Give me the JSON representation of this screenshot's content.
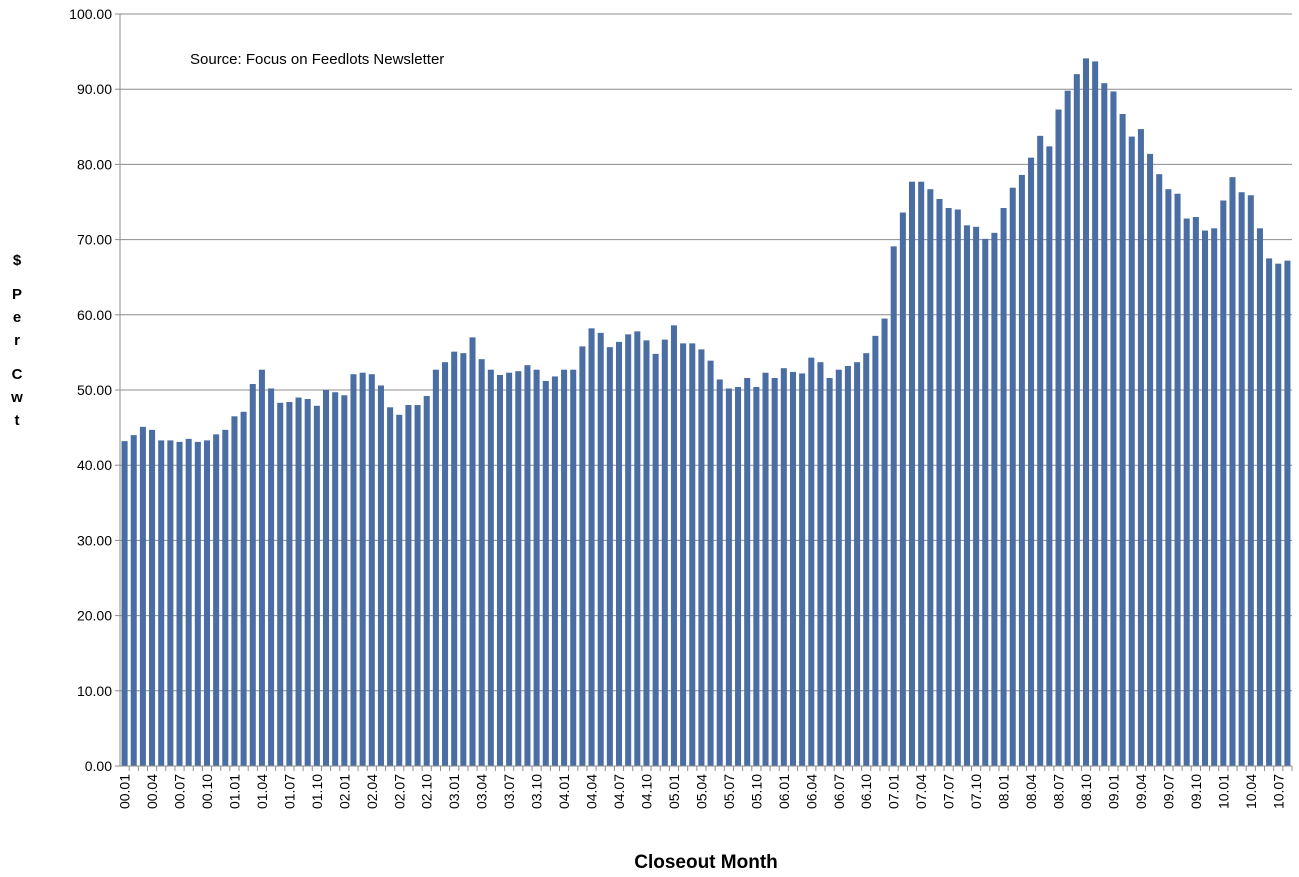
{
  "chart_data": {
    "type": "bar",
    "x_label": "Closeout Month",
    "y_label": "$ Per Cwt",
    "annotation": "Source:  Focus on Feedlots Newsletter",
    "color": "#4a6ea3",
    "grid": true,
    "ylim": [
      0,
      100
    ],
    "yticks": [
      {
        "value": 0,
        "label": "0.00"
      },
      {
        "value": 10,
        "label": "10.00"
      },
      {
        "value": 20,
        "label": "20.00"
      },
      {
        "value": 30,
        "label": "30.00"
      },
      {
        "value": 40,
        "label": "40.00"
      },
      {
        "value": 50,
        "label": "50.00"
      },
      {
        "value": 60,
        "label": "60.00"
      },
      {
        "value": 70,
        "label": "70.00"
      },
      {
        "value": 80,
        "label": "80.00"
      },
      {
        "value": 90,
        "label": "90.00"
      },
      {
        "value": 100,
        "label": "100.00"
      }
    ],
    "categories": [
      "00.01",
      null,
      null,
      "00.04",
      null,
      null,
      "00.07",
      null,
      null,
      "00.10",
      null,
      null,
      "01.01",
      null,
      null,
      "01.04",
      null,
      null,
      "01.07",
      null,
      null,
      "01.10",
      null,
      null,
      "02.01",
      null,
      null,
      "02.04",
      null,
      null,
      "02.07",
      null,
      null,
      "02.10",
      null,
      null,
      "03.01",
      null,
      null,
      "03.04",
      null,
      null,
      "03.07",
      null,
      null,
      "03.10",
      null,
      null,
      "04.01",
      null,
      null,
      "04.04",
      null,
      null,
      "04.07",
      null,
      null,
      "04.10",
      null,
      null,
      "05.01",
      null,
      null,
      "05.04",
      null,
      null,
      "05.07",
      null,
      null,
      "05.10",
      null,
      null,
      "06.01",
      null,
      null,
      "06.04",
      null,
      null,
      "06.07",
      null,
      null,
      "06.10",
      null,
      null,
      "07.01",
      null,
      null,
      "07.04",
      null,
      null,
      "07.07",
      null,
      null,
      "07.10",
      null,
      null,
      "08.01",
      null,
      null,
      "08.04",
      null,
      null,
      "08.07",
      null,
      null,
      "08.10",
      null,
      null,
      "09.01",
      null,
      null,
      "09.04",
      null,
      null,
      "09.07",
      null,
      null,
      "09.10",
      null,
      null,
      "10.01",
      null,
      null,
      "10.04",
      null,
      null,
      "10.07",
      null
    ],
    "values": [
      43.2,
      44.0,
      45.1,
      44.7,
      43.3,
      43.3,
      43.1,
      43.5,
      43.1,
      43.3,
      44.1,
      44.7,
      46.5,
      47.1,
      50.8,
      52.7,
      50.2,
      48.3,
      48.4,
      49.0,
      48.8,
      47.9,
      50.0,
      49.7,
      49.3,
      52.1,
      52.3,
      52.1,
      50.6,
      47.7,
      46.7,
      48.0,
      48.0,
      49.2,
      52.7,
      53.7,
      55.1,
      54.9,
      57.0,
      54.1,
      52.7,
      52.0,
      52.3,
      52.5,
      53.3,
      52.7,
      51.2,
      51.8,
      52.7,
      52.7,
      55.8,
      58.2,
      57.6,
      55.7,
      56.4,
      57.4,
      57.8,
      56.6,
      54.8,
      56.7,
      58.6,
      56.2,
      56.2,
      55.4,
      53.9,
      51.4,
      50.2,
      50.4,
      51.6,
      50.4,
      52.3,
      51.6,
      52.9,
      52.4,
      52.2,
      54.3,
      53.7,
      51.6,
      52.7,
      53.2,
      53.7,
      54.9,
      57.2,
      59.5,
      69.1,
      73.6,
      77.7,
      77.7,
      76.7,
      75.4,
      74.2,
      74.0,
      71.9,
      71.7,
      70.1,
      70.9,
      74.2,
      76.9,
      78.6,
      80.9,
      83.8,
      82.4,
      87.3,
      89.8,
      92.0,
      94.1,
      93.7,
      90.8,
      89.7,
      86.7,
      83.7,
      84.7,
      81.4,
      78.7,
      76.7,
      76.1,
      72.8,
      73.0,
      71.2,
      71.5,
      75.2,
      78.3,
      76.3,
      75.9,
      71.5,
      67.5,
      66.8,
      67.2
    ]
  }
}
